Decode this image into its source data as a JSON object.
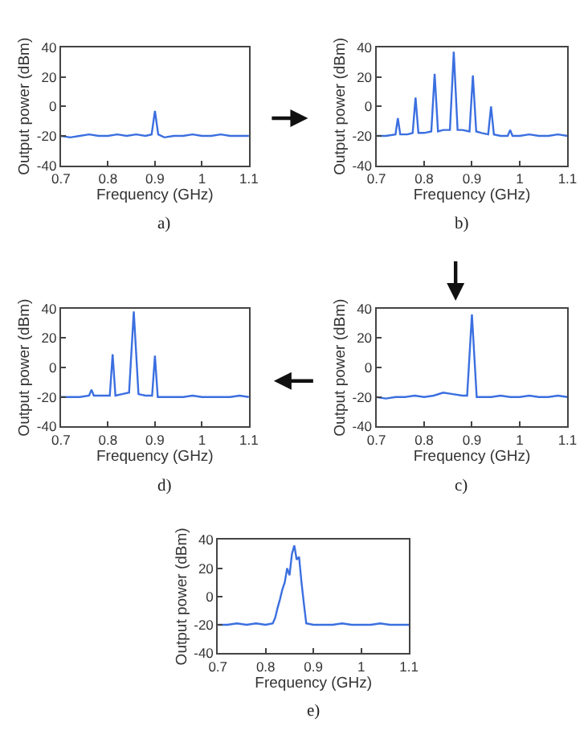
{
  "chart_data": [
    {
      "type": "line",
      "xlabel": "Frequency (GHz)",
      "ylabel": "Output power (dBm)",
      "xlim": [
        0.7,
        1.1
      ],
      "xticks": [
        0.7,
        0.8,
        0.9,
        1,
        1.1
      ],
      "ylim": [
        -40,
        40
      ],
      "yticks": [
        -40,
        -20,
        0,
        20,
        40
      ],
      "annotations": [
        "a)"
      ],
      "series": [
        {
          "color": "#3b6fe0",
          "x": [
            0.7,
            0.72,
            0.74,
            0.76,
            0.78,
            0.8,
            0.82,
            0.84,
            0.86,
            0.88,
            0.893,
            0.9,
            0.907,
            0.92,
            0.94,
            0.96,
            0.98,
            1.0,
            1.02,
            1.04,
            1.06,
            1.08,
            1.1
          ],
          "values": [
            -20,
            -21,
            -20,
            -19,
            -20,
            -20,
            -19,
            -20,
            -19,
            -20,
            -19,
            -3,
            -19,
            -21,
            -20,
            -20,
            -19,
            -20,
            -20,
            -19,
            -20,
            -20,
            -20
          ]
        }
      ]
    },
    {
      "type": "line",
      "xlabel": "Frequency (GHz)",
      "ylabel": "Output power (dBm)",
      "xlim": [
        0.7,
        1.1
      ],
      "xticks": [
        0.7,
        0.8,
        0.9,
        1,
        1.1
      ],
      "ylim": [
        -40,
        40
      ],
      "yticks": [
        -40,
        -20,
        0,
        20,
        40
      ],
      "annotations": [
        "b)"
      ],
      "series": [
        {
          "color": "#3b6fe0",
          "x": [
            0.7,
            0.72,
            0.74,
            0.745,
            0.75,
            0.765,
            0.776,
            0.782,
            0.788,
            0.8,
            0.815,
            0.822,
            0.829,
            0.84,
            0.854,
            0.862,
            0.87,
            0.88,
            0.895,
            0.902,
            0.909,
            0.92,
            0.934,
            0.94,
            0.946,
            0.96,
            0.975,
            0.98,
            0.985,
            1.0,
            1.02,
            1.04,
            1.06,
            1.08,
            1.1
          ],
          "values": [
            -20,
            -20,
            -19,
            -8,
            -19,
            -19,
            -18,
            6,
            -18,
            -18,
            -17,
            22,
            -17,
            -16,
            -16,
            37,
            -16,
            -16,
            -17,
            21,
            -17,
            -18,
            -19,
            0,
            -19,
            -20,
            -20,
            -16,
            -20,
            -20,
            -19,
            -20,
            -20,
            -19,
            -20
          ]
        }
      ]
    },
    {
      "type": "line",
      "xlabel": "Frequency (GHz)",
      "ylabel": "Output power (dBm)",
      "xlim": [
        0.7,
        1.1
      ],
      "xticks": [
        0.7,
        0.8,
        0.9,
        1,
        1.1
      ],
      "ylim": [
        -40,
        40
      ],
      "yticks": [
        -40,
        -20,
        0,
        20,
        40
      ],
      "annotations": [
        "d)"
      ],
      "series": [
        {
          "color": "#3b6fe0",
          "x": [
            0.7,
            0.72,
            0.74,
            0.76,
            0.765,
            0.77,
            0.79,
            0.804,
            0.81,
            0.816,
            0.83,
            0.845,
            0.855,
            0.865,
            0.88,
            0.894,
            0.9,
            0.906,
            0.92,
            0.94,
            0.96,
            0.98,
            1.0,
            1.02,
            1.04,
            1.06,
            1.08,
            1.1
          ],
          "values": [
            -20,
            -20,
            -20,
            -19,
            -15,
            -19,
            -19,
            -19,
            9,
            -19,
            -18,
            -17,
            38,
            -18,
            -19,
            -19,
            8,
            -20,
            -20,
            -20,
            -20,
            -19,
            -20,
            -20,
            -20,
            -20,
            -19,
            -20
          ]
        }
      ]
    },
    {
      "type": "line",
      "xlabel": "Frequency (GHz)",
      "ylabel": "Output power (dBm)",
      "xlim": [
        0.7,
        1.1
      ],
      "xticks": [
        0.7,
        0.8,
        0.9,
        1,
        1.1
      ],
      "ylim": [
        -40,
        40
      ],
      "yticks": [
        -40,
        -20,
        0,
        20,
        40
      ],
      "annotations": [
        "c)"
      ],
      "series": [
        {
          "color": "#3b6fe0",
          "x": [
            0.7,
            0.72,
            0.74,
            0.76,
            0.78,
            0.8,
            0.82,
            0.84,
            0.86,
            0.88,
            0.89,
            0.9,
            0.91,
            0.92,
            0.94,
            0.96,
            0.98,
            1.0,
            1.02,
            1.04,
            1.06,
            1.08,
            1.1
          ],
          "values": [
            -20,
            -21,
            -20,
            -20,
            -19,
            -20,
            -19,
            -17,
            -18,
            -19,
            -19,
            36,
            -20,
            -20,
            -20,
            -19,
            -20,
            -20,
            -19,
            -20,
            -20,
            -19,
            -20
          ]
        }
      ]
    },
    {
      "type": "line",
      "xlabel": "Frequency (GHz)",
      "ylabel": "Output power (dBm)",
      "xlim": [
        0.7,
        1.1
      ],
      "xticks": [
        0.7,
        0.8,
        0.9,
        1,
        1.1
      ],
      "ylim": [
        -40,
        40
      ],
      "yticks": [
        -40,
        -20,
        0,
        20,
        40
      ],
      "annotations": [
        "e)"
      ],
      "series": [
        {
          "color": "#3b6fe0",
          "x": [
            0.7,
            0.72,
            0.74,
            0.76,
            0.78,
            0.8,
            0.815,
            0.82,
            0.825,
            0.83,
            0.835,
            0.84,
            0.845,
            0.85,
            0.855,
            0.86,
            0.865,
            0.87,
            0.875,
            0.88,
            0.885,
            0.9,
            0.92,
            0.94,
            0.96,
            0.98,
            1.0,
            1.02,
            1.04,
            1.06,
            1.08,
            1.1
          ],
          "values": [
            -20,
            -20,
            -19,
            -20,
            -19,
            -20,
            -19,
            -15,
            -8,
            -2,
            5,
            10,
            20,
            15,
            30,
            36,
            26,
            28,
            10,
            -5,
            -19,
            -20,
            -20,
            -20,
            -19,
            -20,
            -20,
            -20,
            -19,
            -20,
            -20,
            -20
          ]
        }
      ]
    }
  ]
}
